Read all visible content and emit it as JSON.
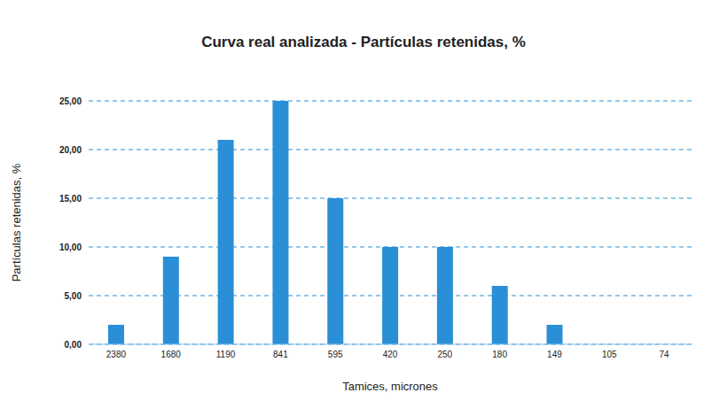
{
  "chart_data": {
    "type": "bar",
    "title": "Curva real analizada - Partículas retenidas, %",
    "x_label": "Tamices, micrones",
    "y_label": "Partículas retenidas, %",
    "categories": [
      "2380",
      "1680",
      "1190",
      "841",
      "595",
      "420",
      "250",
      "180",
      "149",
      "105",
      "74"
    ],
    "values": [
      2,
      9,
      21,
      25,
      15,
      10,
      10,
      6,
      2,
      0,
      0
    ],
    "color": "#2a8fd6",
    "ylim": [
      0,
      25
    ],
    "yticks": [
      {
        "value": 0,
        "label": "0,00"
      },
      {
        "value": 5,
        "label": "5,00"
      },
      {
        "value": 10,
        "label": "10,00"
      },
      {
        "value": 15,
        "label": "15,00"
      },
      {
        "value": 20,
        "label": "20,00"
      },
      {
        "value": 25,
        "label": "25,00"
      }
    ],
    "grid": true
  }
}
